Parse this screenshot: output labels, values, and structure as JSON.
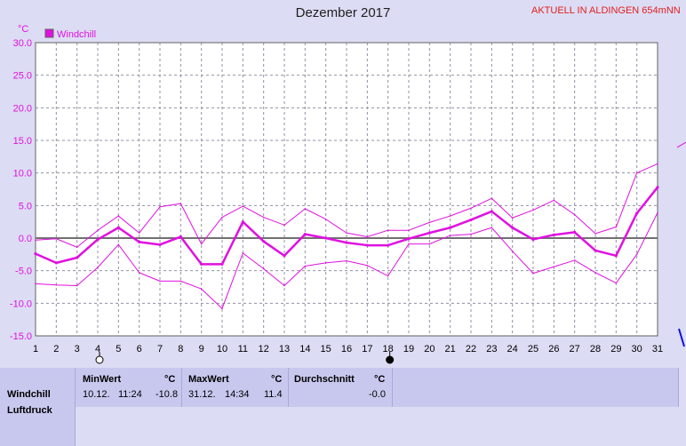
{
  "header": {
    "title": "Dezember 2017",
    "station": "AKTUELL IN ALDINGEN 654mNN"
  },
  "chart_data": {
    "type": "line",
    "title": "Dezember 2017",
    "ylabel": "°C",
    "ylim": [
      -15,
      30
    ],
    "yticks": [
      "30.0",
      "25.0",
      "20.0",
      "15.0",
      "10.0",
      "5.0",
      "0.0",
      "-5.0",
      "-10.0",
      "-15.0"
    ],
    "ytick_values": [
      30,
      25,
      20,
      15,
      10,
      5,
      0,
      -5,
      -10,
      -15
    ],
    "x": [
      1,
      2,
      3,
      4,
      5,
      6,
      7,
      8,
      9,
      10,
      11,
      12,
      13,
      14,
      15,
      16,
      17,
      18,
      19,
      20,
      21,
      22,
      23,
      24,
      25,
      26,
      27,
      28,
      29,
      30,
      31
    ],
    "xticks": [
      "1",
      "2",
      "3",
      "4",
      "5",
      "6",
      "7",
      "8",
      "9",
      "10",
      "11",
      "12",
      "13",
      "14",
      "15",
      "16",
      "17",
      "18",
      "19",
      "20",
      "21",
      "22",
      "23",
      "24",
      "25",
      "26",
      "27",
      "28",
      "29",
      "30",
      "31"
    ],
    "grid": true,
    "legend": "top-left",
    "legend_label": "Windchill",
    "series": [
      {
        "name": "Windchill",
        "role": "mean",
        "color": "#e010e0",
        "values": [
          -2.4,
          -3.8,
          -3.0,
          -0.2,
          1.6,
          -0.6,
          -1.0,
          0.2,
          -4.0,
          -4.0,
          2.5,
          -0.5,
          -2.7,
          0.6,
          0.0,
          -0.7,
          -1.1,
          -1.1,
          -0.1,
          0.8,
          1.6,
          2.8,
          4.1,
          1.6,
          -0.2,
          0.5,
          0.9,
          -1.9,
          -2.7,
          3.8,
          7.8
        ]
      },
      {
        "role": "max",
        "color": "#e010e0",
        "values": [
          -0.3,
          -0.1,
          -1.4,
          1.2,
          3.4,
          0.8,
          4.8,
          5.3,
          -0.9,
          3.2,
          4.9,
          3.2,
          2.0,
          4.5,
          2.9,
          0.8,
          0.2,
          1.2,
          1.2,
          2.4,
          3.4,
          4.6,
          6.1,
          3.1,
          4.3,
          5.8,
          3.6,
          0.7,
          1.7,
          10.0,
          11.4
        ]
      },
      {
        "role": "min",
        "color": "#e010e0",
        "values": [
          -7.0,
          -7.2,
          -7.3,
          -4.5,
          -1.0,
          -5.3,
          -6.6,
          -6.6,
          -7.8,
          -10.8,
          -2.3,
          -4.7,
          -7.3,
          -4.3,
          -3.8,
          -3.5,
          -4.2,
          -5.8,
          -0.9,
          -0.9,
          0.4,
          0.6,
          1.6,
          -2.0,
          -5.4,
          -4.4,
          -3.4,
          -5.3,
          -6.9,
          -2.5,
          3.9
        ]
      }
    ],
    "moon_phases": [
      {
        "day": 4,
        "phase": "full-moon"
      },
      {
        "day": 18,
        "phase": "new-moon"
      }
    ]
  },
  "table": {
    "row_label": "Windchill",
    "row_label_2": "Luftdruck",
    "min_header": "MinWert",
    "min_unit": "°C",
    "min_date": "10.12.",
    "min_time": "11:24",
    "min_value": "-10.8",
    "max_header": "MaxWert",
    "max_unit": "°C",
    "max_date": "31.12.",
    "max_time": "14:34",
    "max_value": "11.4",
    "avg_header": "Durchschnitt",
    "avg_unit": "°C",
    "avg_value": "-0.0"
  },
  "colors": {
    "background": "#dcdcf4",
    "series": "#e010e0",
    "axis_text": "#e010e0",
    "grid": "#9090a8",
    "station_text": "#e0201e"
  }
}
